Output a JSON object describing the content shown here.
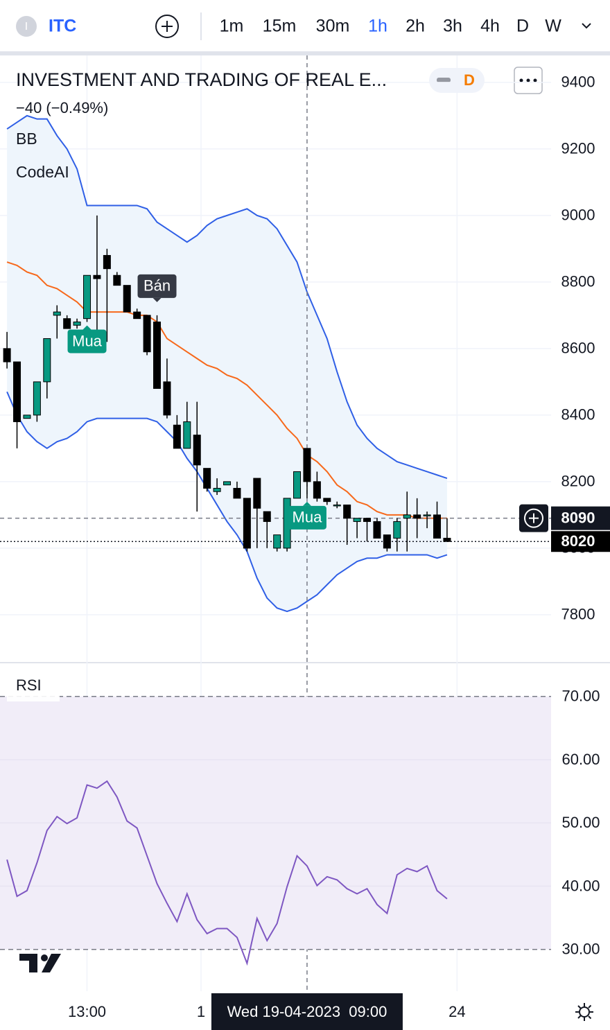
{
  "toolbar": {
    "symbol": "ITC",
    "intervals": [
      "1m",
      "15m",
      "30m",
      "1h",
      "2h",
      "3h",
      "4h",
      "D",
      "W"
    ],
    "active_interval": "1h"
  },
  "chart_data": [
    {
      "type": "candlestick",
      "title": "INVESTMENT AND TRADING OF REAL E...",
      "subtitle": "−40 (−0.49%)",
      "badge": "D",
      "indicators": [
        "BB",
        "CodeAI"
      ],
      "x": [
        0,
        1,
        2,
        3,
        4,
        5,
        6,
        7,
        8,
        9,
        10,
        11,
        12,
        13,
        14,
        15,
        16,
        17,
        18,
        19,
        20,
        21,
        22,
        23,
        24,
        25,
        26,
        27,
        28,
        29,
        30,
        31,
        32,
        33,
        34,
        35,
        36,
        37,
        38,
        39,
        40,
        41,
        42,
        43,
        44
      ],
      "open": [
        8600,
        8560,
        8390,
        8400,
        8500,
        8700,
        8690,
        8670,
        8690,
        8820,
        8880,
        8820,
        8790,
        8710,
        8700,
        8680,
        8500,
        8370,
        8300,
        8340,
        8240,
        8170,
        8190,
        8180,
        8150,
        8210,
        8110,
        8000,
        8000,
        8150,
        8300,
        8200,
        8150,
        8130,
        8130,
        8080,
        8090,
        8080,
        8040,
        8030,
        8090,
        8100,
        8100,
        8100,
        8030
      ],
      "high": [
        8650,
        8560,
        8400,
        8500,
        8630,
        8730,
        8700,
        8690,
        8820,
        9000,
        8900,
        8830,
        8790,
        8720,
        8700,
        8700,
        8570,
        8400,
        8440,
        8440,
        8240,
        8210,
        8200,
        8200,
        8150,
        8210,
        8110,
        8040,
        8150,
        8230,
        8300,
        8230,
        8150,
        8140,
        8130,
        8090,
        8090,
        8090,
        8040,
        8090,
        8170,
        8150,
        8110,
        8140,
        8090
      ],
      "low": [
        8540,
        8300,
        8390,
        8380,
        8450,
        8630,
        8660,
        8660,
        8680,
        8620,
        8620,
        8790,
        8710,
        8690,
        8580,
        8480,
        8390,
        8300,
        8300,
        8110,
        8170,
        8160,
        8190,
        8150,
        7990,
        8000,
        8000,
        7990,
        7990,
        8150,
        8150,
        8140,
        8130,
        8120,
        8010,
        8030,
        8020,
        8030,
        7990,
        7990,
        7990,
        8030,
        8060,
        8040,
        8020
      ],
      "close": [
        8560,
        8380,
        8400,
        8500,
        8630,
        8710,
        8660,
        8680,
        8820,
        8810,
        8840,
        8790,
        8710,
        8690,
        8590,
        8480,
        8400,
        8300,
        8380,
        8250,
        8180,
        8180,
        8200,
        8150,
        8000,
        8120,
        8080,
        8040,
        8150,
        8230,
        8200,
        8150,
        8140,
        8130,
        8090,
        8090,
        8080,
        8030,
        8000,
        8080,
        8100,
        8090,
        8100,
        8030,
        8020
      ],
      "up_color": "#089981",
      "down_color": "#000000",
      "bands": {
        "upper": [
          9260,
          9280,
          9300,
          9290,
          9290,
          9240,
          9200,
          9140,
          9030,
          9030,
          9030,
          9030,
          9030,
          9030,
          9020,
          8980,
          8960,
          8940,
          8920,
          8940,
          8970,
          8990,
          9000,
          9010,
          9020,
          9000,
          8990,
          8960,
          8910,
          8860,
          8770,
          8700,
          8630,
          8530,
          8440,
          8370,
          8330,
          8300,
          8280,
          8260,
          8250,
          8240,
          8230,
          8220,
          8210
        ],
        "middle": [
          8860,
          8850,
          8830,
          8820,
          8790,
          8780,
          8760,
          8740,
          8710,
          8710,
          8710,
          8710,
          8710,
          8700,
          8700,
          8680,
          8630,
          8610,
          8590,
          8570,
          8550,
          8540,
          8520,
          8510,
          8490,
          8460,
          8430,
          8400,
          8360,
          8330,
          8280,
          8260,
          8230,
          8190,
          8170,
          8140,
          8130,
          8110,
          8100,
          8100,
          8100,
          8090,
          8090,
          8090,
          8090
        ],
        "lower": [
          8470,
          8400,
          8350,
          8320,
          8300,
          8320,
          8330,
          8350,
          8380,
          8390,
          8390,
          8390,
          8390,
          8390,
          8390,
          8380,
          8350,
          8320,
          8270,
          8230,
          8180,
          8130,
          8080,
          8040,
          7990,
          7910,
          7850,
          7820,
          7810,
          7820,
          7840,
          7860,
          7890,
          7920,
          7940,
          7960,
          7970,
          7970,
          7980,
          7980,
          7980,
          7980,
          7980,
          7970,
          7980
        ],
        "color": "#2f5fe6",
        "middle_color": "#f7681a",
        "fill": "#eef5fc"
      },
      "signals": [
        null,
        null,
        null,
        null,
        null,
        null,
        null,
        null,
        "Mua",
        null,
        null,
        null,
        null,
        null,
        null,
        "Bán",
        null,
        null,
        null,
        null,
        null,
        null,
        null,
        null,
        null,
        null,
        null,
        null,
        null,
        null,
        "Mua",
        null,
        null,
        null,
        null,
        null,
        null,
        null,
        null,
        null,
        null,
        null,
        null,
        null,
        null
      ],
      "ylim": [
        7658,
        9481
      ],
      "yticks": [
        7800,
        8000,
        8200,
        8400,
        8600,
        8800,
        9000,
        9200,
        9400
      ],
      "xlim": [
        -0.7,
        54.4
      ],
      "xticks": [
        {
          "value": 8,
          "label": "13:00"
        },
        {
          "value": 19.4,
          "label": "1"
        },
        {
          "value": 45,
          "label": "24"
        }
      ],
      "crosshair": {
        "x": 30,
        "x_label": "Wed 19-04-2023  09:00",
        "y": 8090
      },
      "last_price": 8020
    },
    {
      "type": "line",
      "title": "RSI",
      "color": "#7e57c2",
      "band_fill": "#f1edf8",
      "x": [
        0,
        1,
        2,
        3,
        4,
        5,
        6,
        7,
        8,
        9,
        10,
        11,
        12,
        13,
        14,
        15,
        16,
        17,
        18,
        19,
        20,
        21,
        22,
        23,
        24,
        25,
        26,
        27,
        28,
        29,
        30,
        31,
        32,
        33,
        34,
        35,
        36,
        37,
        38,
        39,
        40,
        41,
        42,
        43,
        44
      ],
      "values": [
        44.2,
        38.4,
        39.3,
        43.7,
        48.8,
        51.0,
        49.9,
        50.8,
        56.0,
        55.5,
        56.6,
        54.1,
        50.3,
        49.2,
        44.8,
        40.4,
        37.3,
        34.4,
        38.8,
        34.7,
        32.5,
        33.3,
        33.3,
        31.9,
        27.8,
        34.9,
        31.4,
        34.1,
        39.9,
        44.8,
        43.2,
        40.1,
        41.5,
        41.0,
        39.6,
        38.8,
        39.6,
        37.1,
        35.7,
        41.8,
        42.8,
        42.3,
        43.2,
        39.3,
        38.0
      ],
      "ylim": [
        23.4,
        74.9
      ],
      "yticks": [
        {
          "value": 70,
          "label": "70.00"
        },
        {
          "value": 60,
          "label": "60.00"
        },
        {
          "value": 50,
          "label": "50.00"
        },
        {
          "value": 40,
          "label": "40.00"
        },
        {
          "value": 30,
          "label": "30.00"
        }
      ]
    }
  ]
}
